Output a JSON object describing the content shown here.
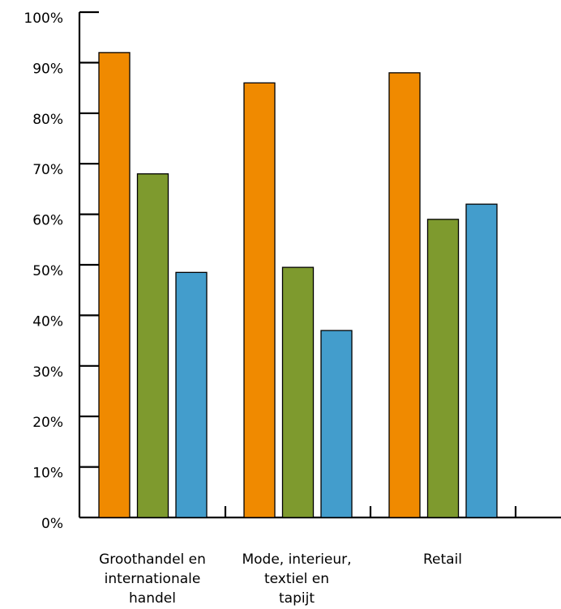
{
  "chart_data": {
    "type": "bar",
    "title": "",
    "xlabel": "",
    "ylabel": "",
    "ylim": [
      0,
      100
    ],
    "yticks": [
      "0%",
      "10%",
      "20%",
      "30%",
      "40%",
      "50%",
      "60%",
      "70%",
      "80%",
      "90%",
      "100%"
    ],
    "categories": [
      [
        "Groothandel en",
        "internationale",
        "handel"
      ],
      [
        "Mode, interieur,",
        "textiel en",
        "tapijt"
      ],
      [
        "Retail"
      ]
    ],
    "series": [
      {
        "values": [
          92,
          86,
          88
        ],
        "color": "#f08a00"
      },
      {
        "values": [
          68,
          49.5,
          59
        ],
        "color": "#7e9a2e"
      },
      {
        "values": [
          48.5,
          37,
          62
        ],
        "color": "#439dcc"
      }
    ],
    "grid": false,
    "legend": "none"
  }
}
